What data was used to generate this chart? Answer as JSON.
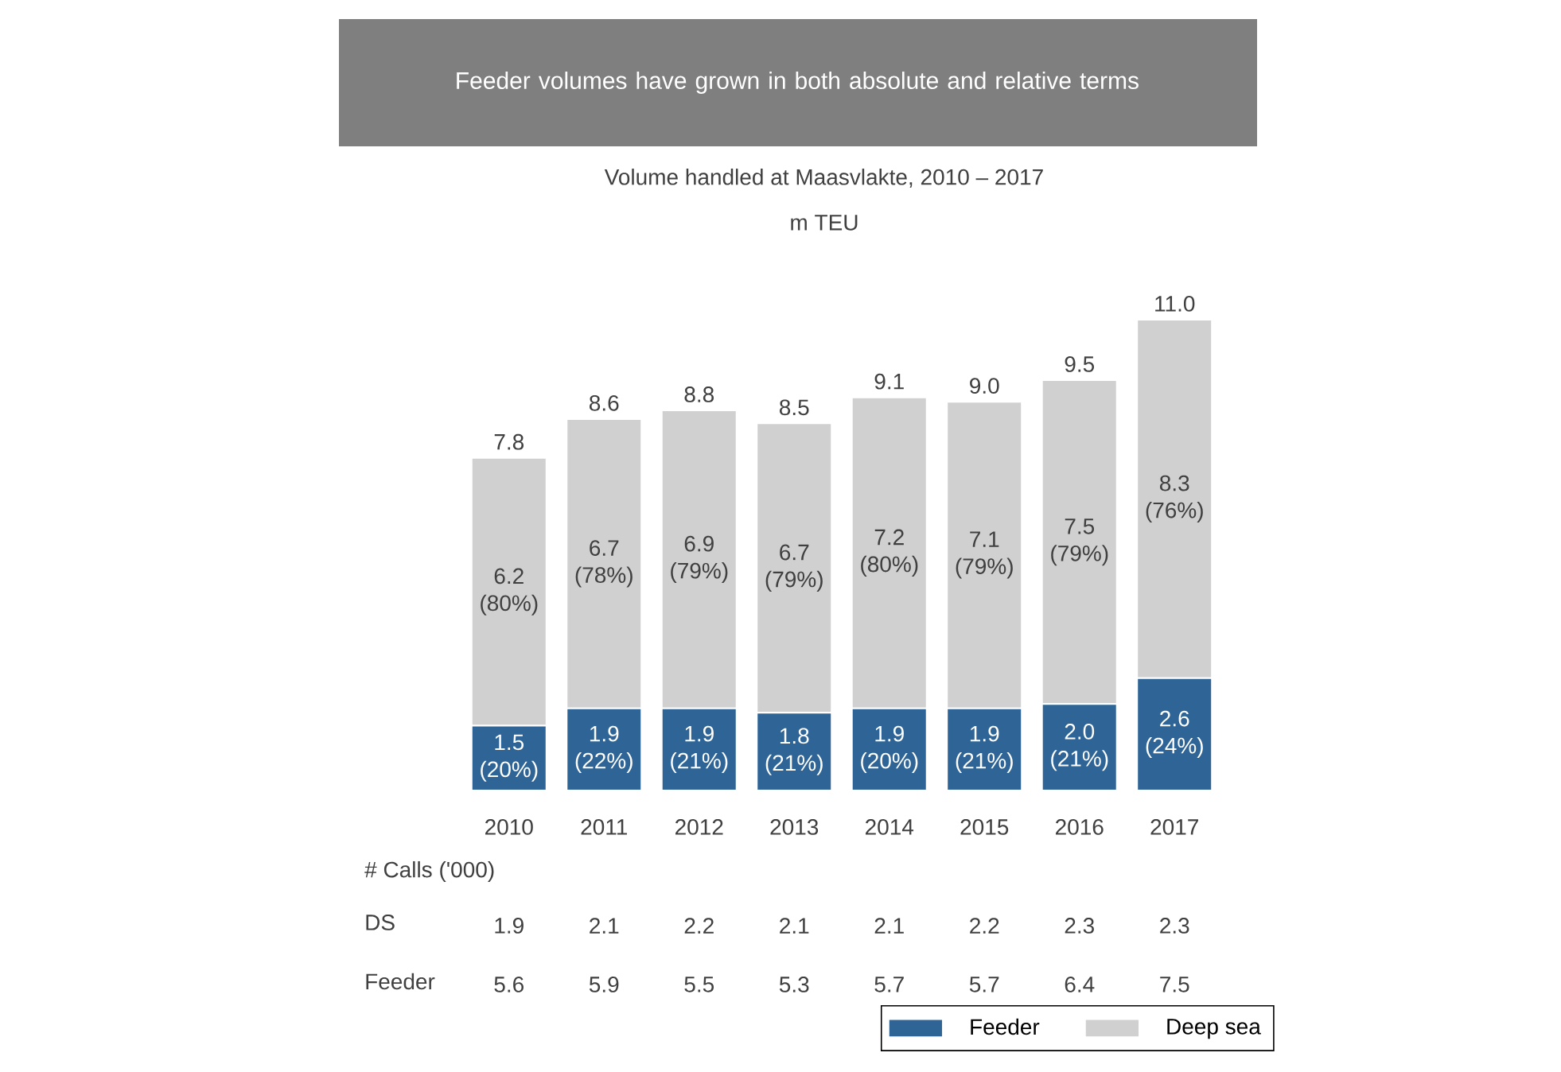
{
  "chart_data": {
    "type": "bar",
    "stacked": true,
    "title": "Feeder volumes have grown in both absolute and relative terms",
    "subtitle": "Volume handled at Maasvlakte, 2010 – 2017",
    "ylabel": "m TEU",
    "categories": [
      "2010",
      "2011",
      "2012",
      "2013",
      "2014",
      "2015",
      "2016",
      "2017"
    ],
    "series": [
      {
        "name": "Feeder",
        "color": "#2e6496",
        "values": [
          1.5,
          1.9,
          1.9,
          1.8,
          1.9,
          1.9,
          2.0,
          2.6
        ],
        "value_labels": [
          "1.5 (20%)",
          "1.9 (22%)",
          "1.9 (21%)",
          "1.8 (21%)",
          "1.9 (20%)",
          "1.9 (21%)",
          "2.0 (21%)",
          "2.6 (24%)"
        ]
      },
      {
        "name": "Deep sea",
        "color": "#d0d0d0",
        "values": [
          6.2,
          6.7,
          6.9,
          6.7,
          7.2,
          7.1,
          7.5,
          8.3
        ],
        "value_labels": [
          "6.2 (80%)",
          "6.7 (78%)",
          "6.9 (79%)",
          "6.7 (79%)",
          "7.2 (80%)",
          "7.1 (79%)",
          "7.5 (79%)",
          "8.3 (76%)"
        ]
      }
    ],
    "totals": [
      "7.8",
      "8.6",
      "8.8",
      "8.5",
      "9.1",
      "9.0",
      "9.5",
      "11.0"
    ],
    "legend": "bottom right",
    "annotations": [
      "# Calls ('000)",
      "DS",
      "1.9",
      "2.1",
      "2.2",
      "2.1",
      "2.1",
      "2.2",
      "2.3",
      "2.3",
      "Feeder",
      "5.6",
      "5.9",
      "5.5",
      "5.3",
      "5.7",
      "5.7",
      "6.4",
      "7.5"
    ]
  }
}
